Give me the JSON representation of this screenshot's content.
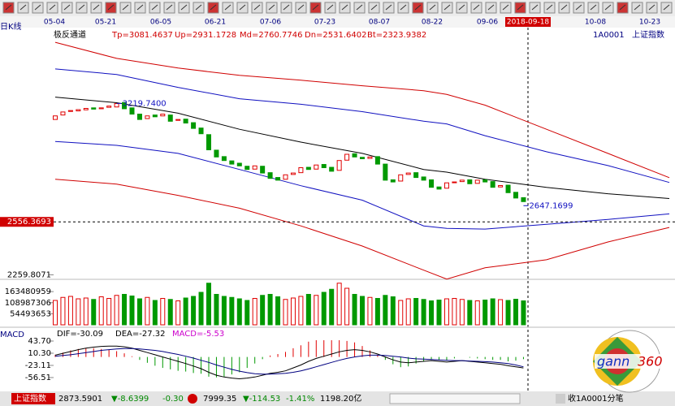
{
  "toolbar": {
    "dates": [
      "05-04",
      "05-21",
      "06-05",
      "06-21",
      "07-06",
      "07-23",
      "08-07",
      "08-22",
      "09-06",
      "2018-09-18",
      "10-08",
      "10-23"
    ]
  },
  "chart_data": [
    {
      "type": "candlestick",
      "period_label": "日K线",
      "title": "极反通道",
      "readouts": [
        "Tp=3081.4637",
        "Up=2931.1728",
        "Md=2760.7746",
        "Dn=2531.6402",
        "Bt=2323.9382"
      ],
      "symbol": "1A0001",
      "name": "上证指数",
      "up_color": "#e00000",
      "down_color": "#009900",
      "ylim": [
        2230,
        3640
      ],
      "yticks": [
        2259.8071
      ],
      "cursor_price": 2556.3693,
      "annotations": [
        {
          "index": 8,
          "value": 3219.74,
          "label": "3219.7400"
        },
        {
          "index": 61,
          "value": 2647.1699,
          "label": "2647.1699"
        }
      ],
      "open": [
        3130,
        3155,
        3175,
        3178,
        3184,
        3195,
        3190,
        3198,
        3200,
        3225,
        3195,
        3160,
        3135,
        3155,
        3150,
        3155,
        3125,
        3132,
        3112,
        3082,
        3045,
        2958,
        2922,
        2898,
        2885,
        2868,
        2852,
        2868,
        2832,
        2805,
        2795,
        2822,
        2832,
        2862,
        2852,
        2878,
        2862,
        2845,
        2902,
        2938,
        2918,
        2912,
        2922,
        2880,
        2792,
        2785,
        2822,
        2832,
        2808,
        2792,
        2752,
        2745,
        2776,
        2782,
        2792,
        2772,
        2792,
        2782,
        2752,
        2762,
        2722,
        2692
      ],
      "close": [
        3150,
        3172,
        3180,
        3185,
        3192,
        3188,
        3195,
        3205,
        3219,
        3190,
        3160,
        3130,
        3150,
        3145,
        3160,
        3120,
        3130,
        3110,
        3080,
        3050,
        2960,
        2920,
        2900,
        2880,
        2870,
        2850,
        2870,
        2830,
        2800,
        2790,
        2820,
        2830,
        2860,
        2850,
        2875,
        2860,
        2840,
        2900,
        2935,
        2920,
        2910,
        2920,
        2880,
        2790,
        2780,
        2820,
        2830,
        2805,
        2790,
        2750,
        2740,
        2775,
        2780,
        2790,
        2770,
        2790,
        2780,
        2750,
        2760,
        2720,
        2690,
        2670
      ],
      "channels_x": [
        0,
        8,
        16,
        24,
        32,
        40,
        48,
        51,
        56,
        64,
        72,
        80
      ],
      "channels": [
        {
          "color": "#d00000",
          "values": [
            3562,
            3472,
            3418,
            3377,
            3350,
            3319,
            3291,
            3270,
            3210,
            3075,
            2940,
            2804
          ]
        },
        {
          "color": "#1010c0",
          "values": [
            3413,
            3382,
            3310,
            3246,
            3215,
            3174,
            3120,
            3105,
            3039,
            2949,
            2872,
            2777
          ]
        },
        {
          "color": "#000000",
          "values": [
            3255,
            3224,
            3165,
            3075,
            3003,
            2940,
            2850,
            2835,
            2795,
            2750,
            2714,
            2687
          ]
        },
        {
          "color": "#1010c0",
          "values": [
            3007,
            2985,
            2940,
            2850,
            2759,
            2678,
            2534,
            2520,
            2516,
            2543,
            2570,
            2601
          ]
        },
        {
          "color": "#d00000",
          "values": [
            2795,
            2768,
            2705,
            2633,
            2534,
            2421,
            2286,
            2236,
            2299,
            2344,
            2444,
            2525
          ]
        }
      ]
    },
    {
      "type": "volume",
      "ylim": [
        0,
        220000000
      ],
      "yticks": [
        163480959,
        108987306,
        54493653
      ],
      "values": [
        120000000,
        135000000,
        140000000,
        128000000,
        132000000,
        125000000,
        138000000,
        130000000,
        145000000,
        150000000,
        142000000,
        128000000,
        135000000,
        120000000,
        130000000,
        125000000,
        118000000,
        132000000,
        140000000,
        160000000,
        205000000,
        150000000,
        140000000,
        135000000,
        128000000,
        120000000,
        130000000,
        145000000,
        150000000,
        138000000,
        125000000,
        132000000,
        140000000,
        150000000,
        145000000,
        160000000,
        175000000,
        205000000,
        180000000,
        150000000,
        140000000,
        135000000,
        130000000,
        145000000,
        138000000,
        120000000,
        128000000,
        130000000,
        125000000,
        118000000,
        122000000,
        128000000,
        130000000,
        125000000,
        120000000,
        118000000,
        122000000,
        128000000,
        124000000,
        120000000,
        126000000,
        118000000
      ]
    },
    {
      "type": "macd",
      "label": "MACD",
      "readouts": [
        "DIF=-30.09",
        "DEA=-27.32",
        "MACD=-5.53"
      ],
      "readout_colors": [
        "#000000",
        "#000000",
        "#cc00cc"
      ],
      "ylim": [
        -90,
        66
      ],
      "yticks": [
        {
          "value": 43.7,
          "label": "43.70"
        },
        {
          "value": 10.3,
          "label": "10.30"
        },
        -23.11,
        -56.51
      ],
      "dif_color": "#000000",
      "dea_color": "#000080",
      "dif": [
        5,
        10,
        15,
        20,
        24,
        27,
        29,
        30,
        30,
        28,
        24,
        18,
        12,
        6,
        0,
        -6,
        -12,
        -18,
        -25,
        -32,
        -42,
        -50,
        -55,
        -58,
        -60,
        -58,
        -55,
        -50,
        -45,
        -42,
        -38,
        -30,
        -22,
        -12,
        -4,
        2,
        8,
        14,
        18,
        20,
        18,
        14,
        8,
        0,
        -8,
        -14,
        -16,
        -14,
        -12,
        -10,
        -12,
        -14,
        -12,
        -10,
        -12,
        -14,
        -16,
        -18,
        -20,
        -24,
        -27,
        -30
      ],
      "dea": [
        2,
        4,
        6,
        9,
        12,
        15,
        18,
        20,
        22,
        23,
        23,
        22,
        20,
        18,
        15,
        11,
        7,
        2,
        -3,
        -9,
        -15,
        -22,
        -28,
        -34,
        -39,
        -43,
        -46,
        -47,
        -47,
        -46,
        -45,
        -42,
        -38,
        -33,
        -27,
        -21,
        -15,
        -9,
        -4,
        0,
        3,
        5,
        5,
        4,
        2,
        0,
        -3,
        -5,
        -6,
        -7,
        -8,
        -9,
        -10,
        -10,
        -11,
        -12,
        -13,
        -14,
        -16,
        -18,
        -22,
        -27
      ],
      "hist": [
        6,
        12,
        18,
        22,
        24,
        24,
        22,
        20,
        16,
        10,
        2,
        -8,
        -16,
        -24,
        -30,
        -34,
        -38,
        -40,
        -44,
        -46,
        -54,
        -56,
        -54,
        -48,
        -42,
        -30,
        -18,
        -6,
        4,
        8,
        14,
        24,
        32,
        42,
        46,
        46,
        46,
        46,
        44,
        40,
        30,
        18,
        6,
        -8,
        -20,
        -28,
        -26,
        -18,
        -12,
        -6,
        -8,
        -10,
        -4,
        0,
        -2,
        -4,
        -6,
        -8,
        -8,
        -12,
        -10,
        -6
      ]
    }
  ],
  "logo": {
    "text1": "gann",
    "text2": "360"
  },
  "status_bar": {
    "index_name": "上证指数",
    "price": "2873.5901",
    "change": "▼-8.6399",
    "pct": "-0.30",
    "value2": "7999.35",
    "change2": "▼-114.53",
    "pct2": "-1.41%",
    "amount": "1198.20亿",
    "right": "收1A0001分笔"
  }
}
